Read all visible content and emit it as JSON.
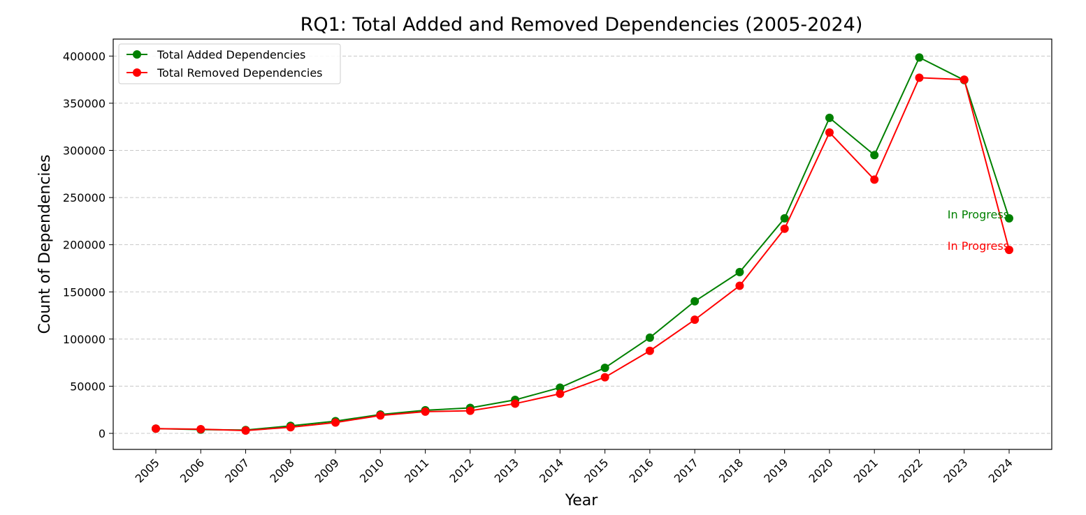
{
  "chart_data": {
    "type": "line",
    "title": "RQ1: Total Added and Removed Dependencies (2005-2024)",
    "xlabel": "Year",
    "ylabel": "Count of Dependencies",
    "x": [
      "2005",
      "2006",
      "2007",
      "2008",
      "2009",
      "2010",
      "2011",
      "2012",
      "2013",
      "2014",
      "2015",
      "2016",
      "2017",
      "2018",
      "2019",
      "2020",
      "2021",
      "2022",
      "2023",
      "2024"
    ],
    "ylim": [
      -17000,
      418000
    ],
    "yticks": [
      0,
      50000,
      100000,
      150000,
      200000,
      250000,
      300000,
      350000,
      400000
    ],
    "ytick_labels": [
      "0",
      "50000",
      "100000",
      "150000",
      "200000",
      "250000",
      "300000",
      "350000",
      "400000"
    ],
    "grid": "horizontal dashed",
    "legend_position": "top-left",
    "series": [
      {
        "name": "Total Added Dependencies",
        "color": "#008000",
        "marker": "circle",
        "values": [
          5000,
          4000,
          3500,
          8000,
          13000,
          20000,
          24500,
          27000,
          35500,
          48500,
          69500,
          101500,
          140000,
          171000,
          228000,
          334500,
          295000,
          398500,
          374500,
          228000
        ]
      },
      {
        "name": "Total Removed Dependencies",
        "color": "#ff0000",
        "marker": "circle",
        "values": [
          5000,
          4500,
          3000,
          6500,
          11500,
          19000,
          23000,
          24000,
          31500,
          42000,
          59500,
          87500,
          120500,
          156500,
          217000,
          319000,
          269000,
          377000,
          375000,
          194500
        ]
      }
    ],
    "annotations": [
      {
        "text": "In Progress",
        "x": "2024",
        "y": 228000,
        "color": "#008000"
      },
      {
        "text": "In Progress",
        "x": "2024",
        "y": 194500,
        "color": "#ff0000"
      }
    ]
  }
}
